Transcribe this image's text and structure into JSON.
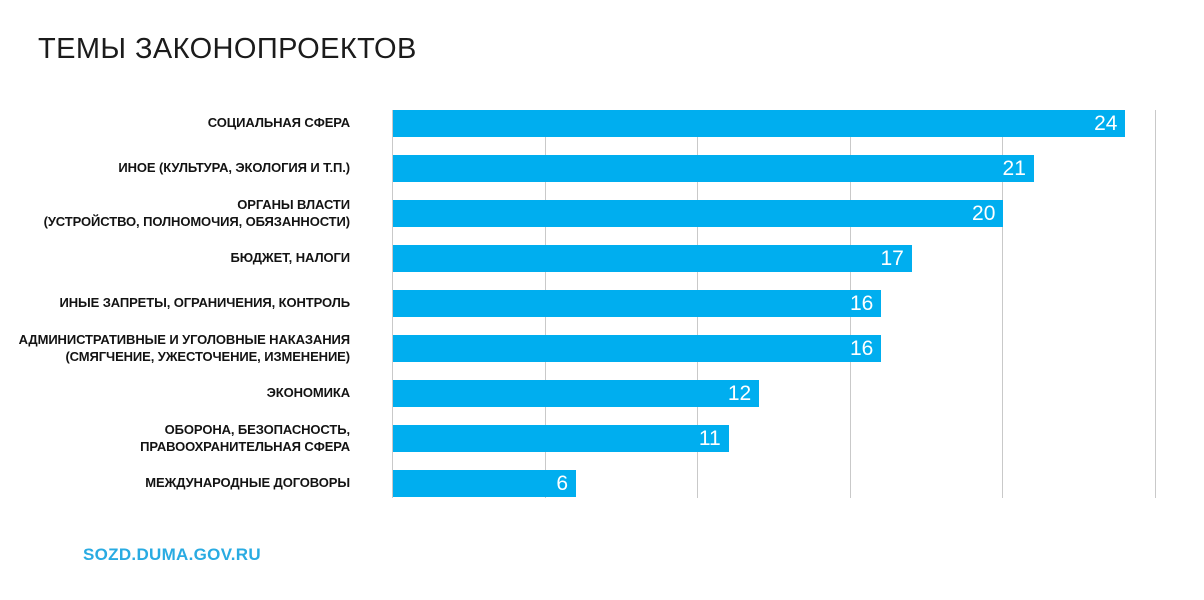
{
  "title": "ТЕМЫ ЗАКОНОПРОЕКТОВ",
  "footer": {
    "link_label": "SOZD.DUMA.GOV.RU"
  },
  "colors": {
    "bar": "#00AEEF",
    "grid": "#c9c9c9",
    "title_text": "#1b1b1b",
    "value_text": "#ffffff",
    "footer_link": "#29ABE2"
  },
  "chart_data": {
    "type": "bar",
    "orientation": "horizontal",
    "title": "ТЕМЫ ЗАКОНОПРОЕКТОВ",
    "categories": [
      "СОЦИАЛЬНАЯ СФЕРА",
      "ИНОЕ (КУЛЬТУРА, ЭКОЛОГИЯ И Т.П.)",
      "ОРГАНЫ ВЛАСТИ\n(УСТРОЙСТВО, ПОЛНОМОЧИЯ, ОБЯЗАННОСТИ)",
      "БЮДЖЕТ, НАЛОГИ",
      "ИНЫЕ ЗАПРЕТЫ, ОГРАНИЧЕНИЯ, КОНТРОЛЬ",
      "АДМИНИСТРАТИВНЫЕ И УГОЛОВНЫЕ НАКАЗАНИЯ\n(СМЯГЧЕНИЕ, УЖЕСТОЧЕНИЕ, ИЗМЕНЕНИЕ)",
      "ЭКОНОМИКА",
      "ОБОРОНА, БЕЗОПАСНОСТЬ,\nПРАВООХРАНИТЕЛЬНАЯ СФЕРА",
      "МЕЖДУНАРОДНЫЕ ДОГОВОРЫ"
    ],
    "values": [
      24,
      21,
      20,
      17,
      16,
      16,
      12,
      11,
      6
    ],
    "xlabel": "",
    "ylabel": "",
    "xlim": [
      0,
      25
    ],
    "grid_step": 5,
    "grid": true,
    "tick_labels_shown": false,
    "data_labels": "inside-end",
    "legend": "none"
  }
}
